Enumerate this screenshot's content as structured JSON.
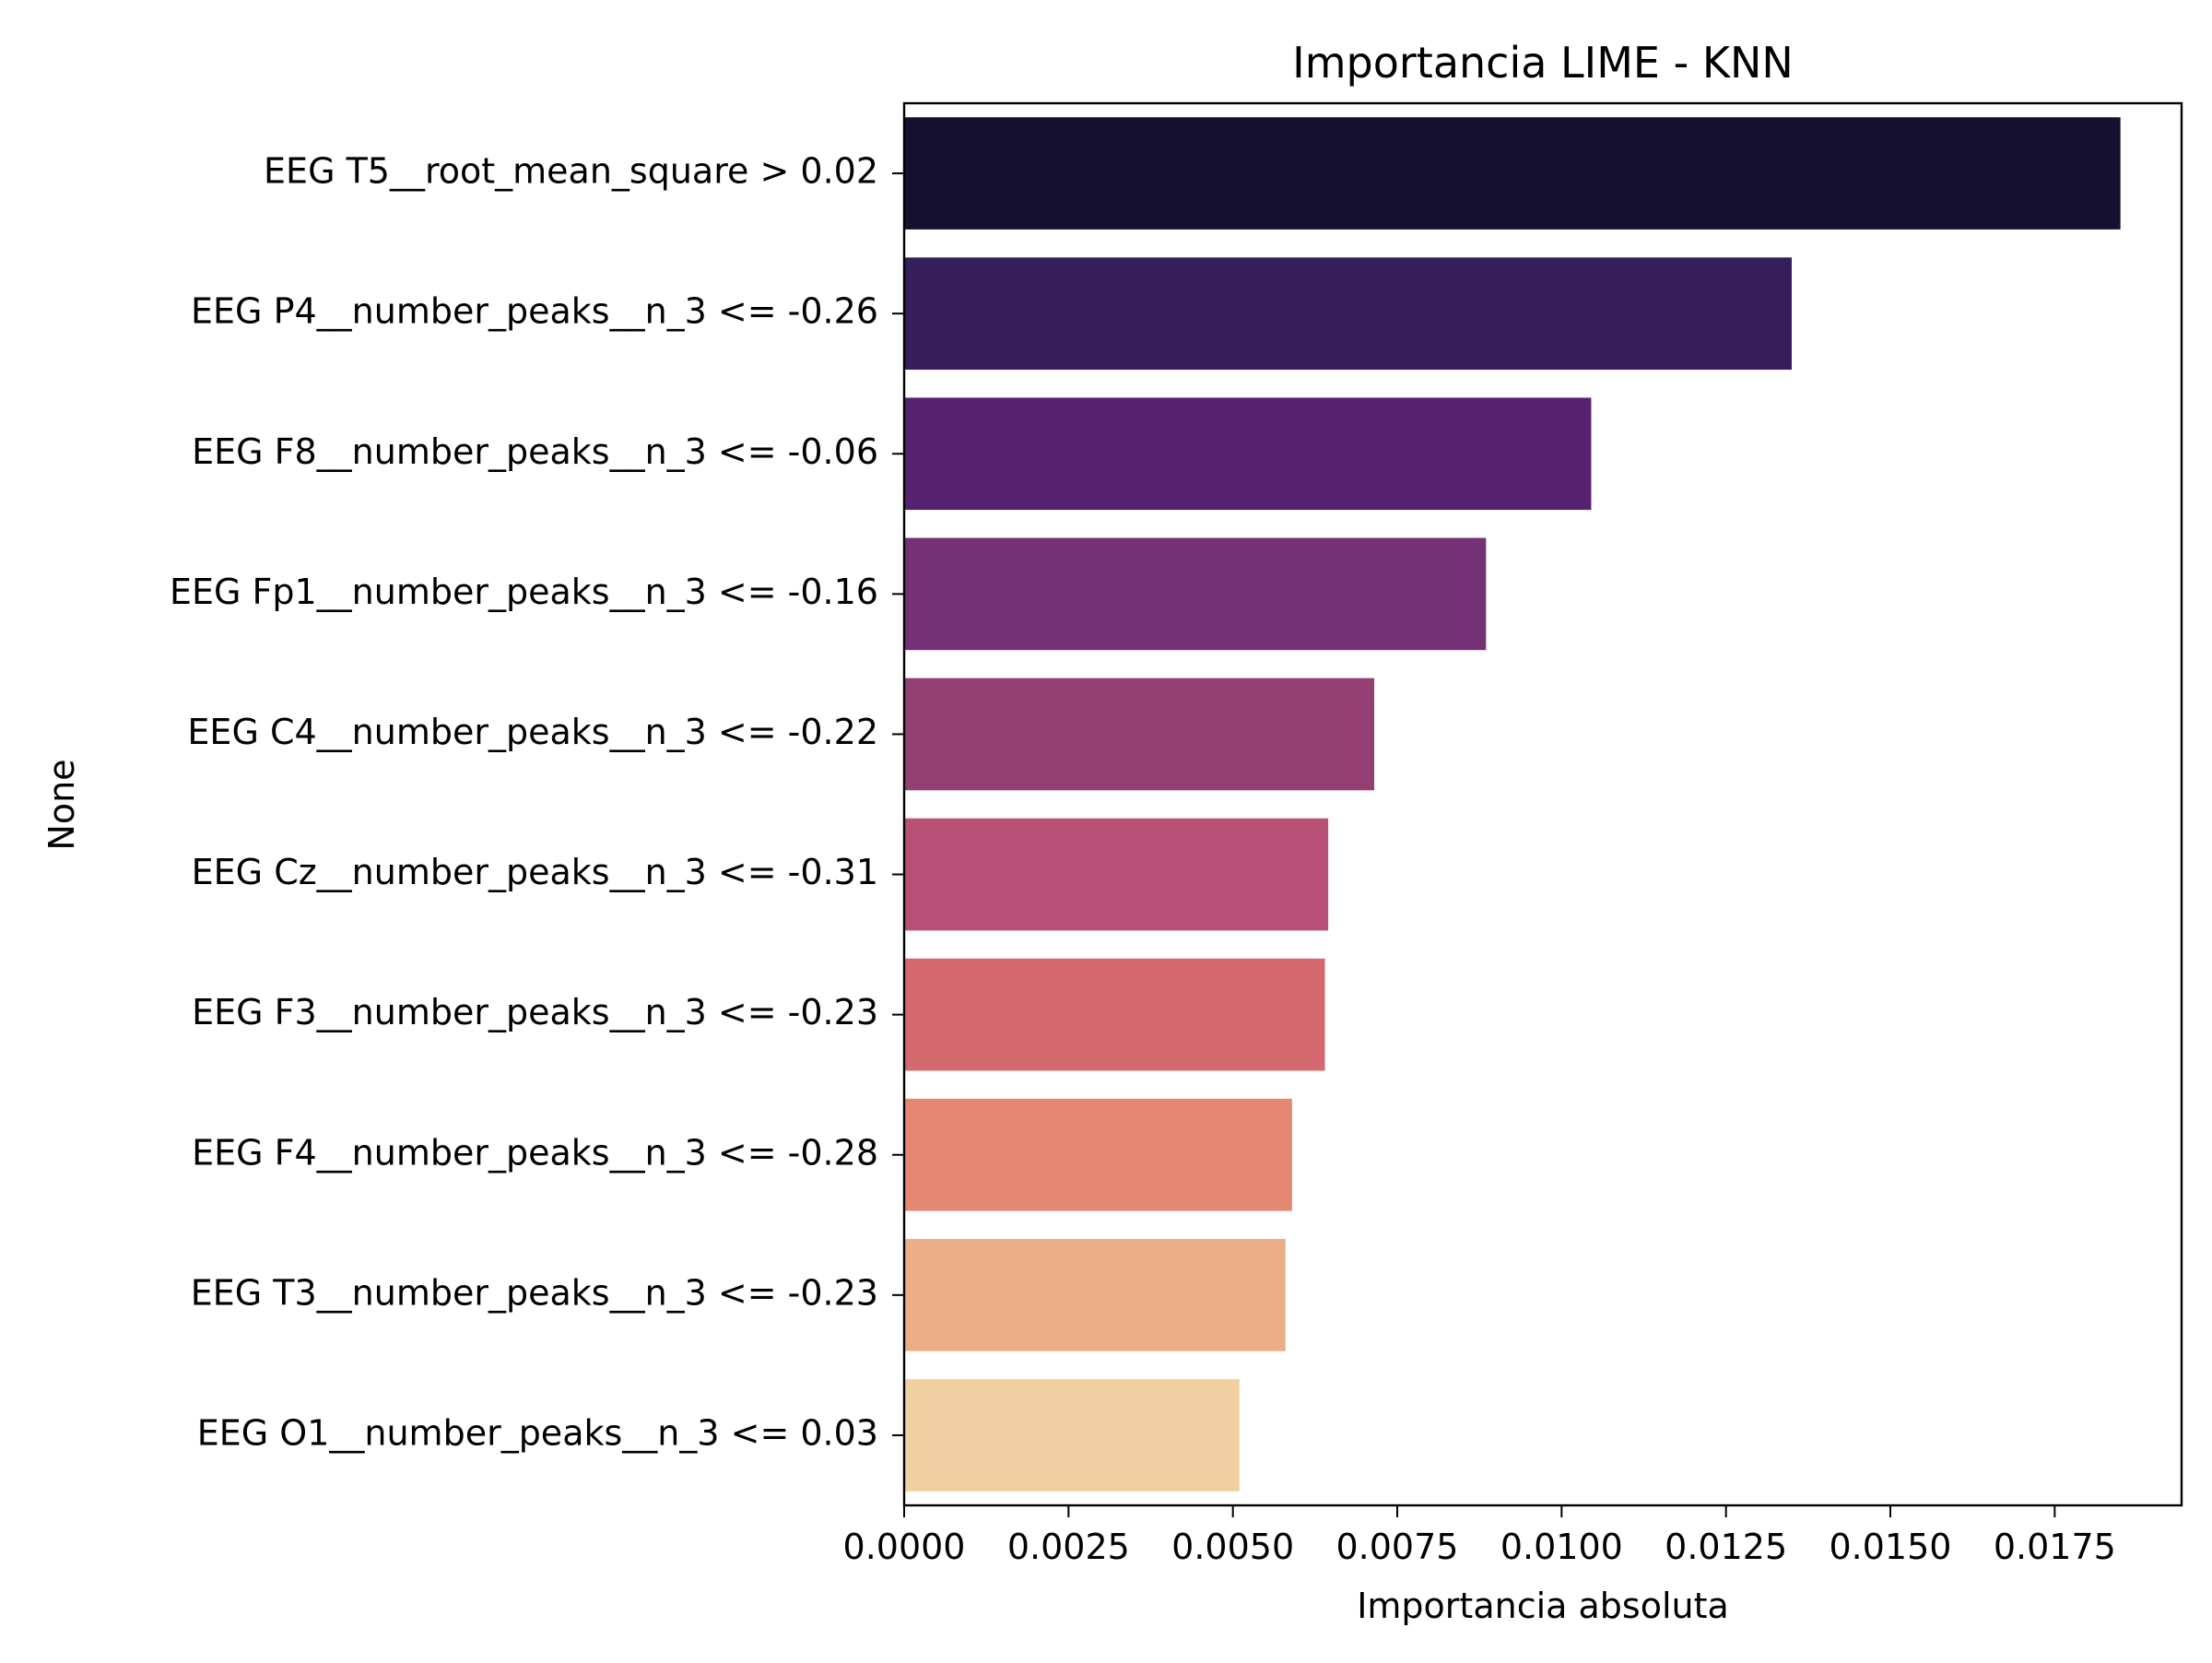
{
  "chart_data": {
    "type": "bar",
    "orientation": "horizontal",
    "title": "Importancia LIME - KNN",
    "xlabel": "Importancia absoluta",
    "ylabel": "None",
    "categories": [
      "EEG T5__root_mean_square > 0.02",
      "EEG P4__number_peaks__n_3 <= -0.26",
      "EEG F8__number_peaks__n_3 <= -0.06",
      "EEG Fp1__number_peaks__n_3 <= -0.16",
      "EEG C4__number_peaks__n_3 <= -0.22",
      "EEG Cz__number_peaks__n_3 <= -0.31",
      "EEG F3__number_peaks__n_3 <= -0.23",
      "EEG F4__number_peaks__n_3 <= -0.28",
      "EEG T3__number_peaks__n_3 <= -0.23",
      "EEG O1__number_peaks__n_3 <= 0.03"
    ],
    "values": [
      0.0185,
      0.0135,
      0.01045,
      0.00885,
      0.00715,
      0.00645,
      0.0064,
      0.0059,
      0.0058,
      0.0051
    ],
    "colors": [
      "#171131",
      "#361d5b",
      "#56226f",
      "#743175",
      "#933f74",
      "#b85175",
      "#d5676f",
      "#e48872",
      "#ebad85",
      "#f0d0a1"
    ],
    "xlim": [
      0,
      0.01943
    ],
    "xticks": [
      "0.0000",
      "0.0025",
      "0.0050",
      "0.0075",
      "0.0100",
      "0.0125",
      "0.0150",
      "0.0175"
    ],
    "xtick_values": [
      0,
      0.0025,
      0.005,
      0.0075,
      0.01,
      0.0125,
      0.015,
      0.0175
    ],
    "grid": false,
    "legend": "none"
  }
}
